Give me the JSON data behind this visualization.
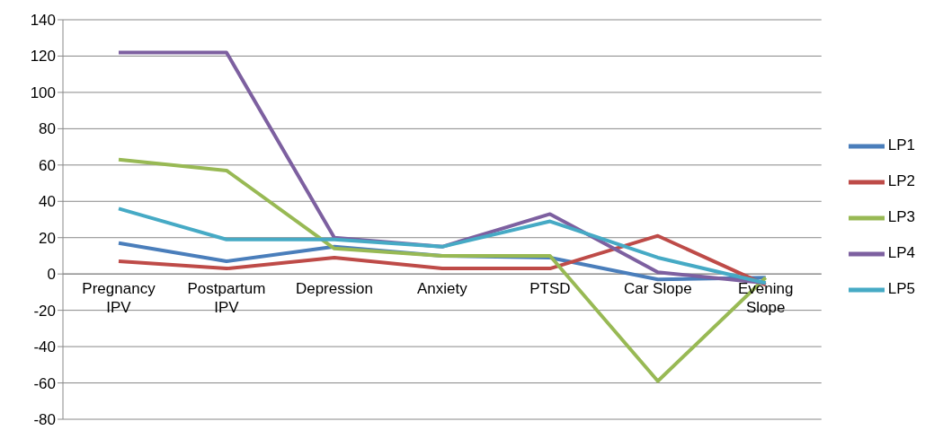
{
  "chart_data": {
    "type": "line",
    "categories": [
      "Pregnancy IPV",
      "Postpartum IPV",
      "Depression",
      "Anxiety",
      "PTSD",
      "Car Slope",
      "Evening Slope"
    ],
    "series": [
      {
        "name": "LP1",
        "color": "#4a7ebb",
        "values": [
          17,
          7,
          15,
          10,
          9,
          -3,
          -2
        ]
      },
      {
        "name": "LP2",
        "color": "#be4b48",
        "values": [
          7,
          3,
          9,
          3,
          3,
          21,
          -6
        ]
      },
      {
        "name": "LP3",
        "color": "#98b954",
        "values": [
          63,
          57,
          14,
          10,
          10,
          -59,
          -2
        ]
      },
      {
        "name": "LP4",
        "color": "#7d60a0",
        "values": [
          122,
          122,
          20,
          15,
          33,
          1,
          -5
        ]
      },
      {
        "name": "LP5",
        "color": "#46aac5",
        "values": [
          36,
          19,
          19,
          15,
          29,
          9,
          -5
        ]
      }
    ],
    "ylim": [
      -80,
      140
    ],
    "yticks": [
      -80,
      -60,
      -40,
      -20,
      0,
      20,
      40,
      60,
      80,
      100,
      120,
      140
    ],
    "grid": "y",
    "legend": "right",
    "marker": "none",
    "line_style": "solid"
  }
}
